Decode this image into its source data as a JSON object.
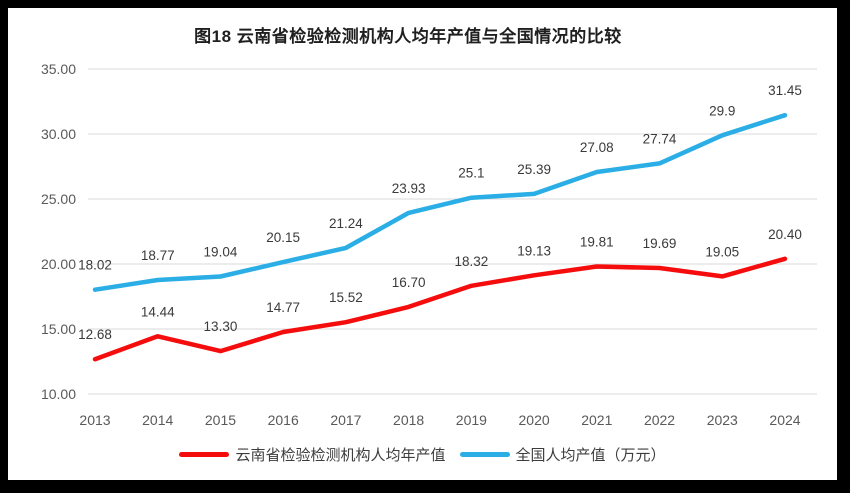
{
  "window": {
    "frame_color": "#000000",
    "panel_color": "#ffffff"
  },
  "chart_data": {
    "type": "line",
    "title": "图18  云南省检验检测机构人均年产值与全国情况的比较",
    "categories": [
      "2013",
      "2014",
      "2015",
      "2016",
      "2017",
      "2018",
      "2019",
      "2020",
      "2021",
      "2022",
      "2023",
      "2024"
    ],
    "series": [
      {
        "name": "云南省检验检测机构人均年产值",
        "color": "#f50d0d",
        "values": [
          12.68,
          14.44,
          13.3,
          14.77,
          15.52,
          16.7,
          18.32,
          19.13,
          19.81,
          19.69,
          19.05,
          20.4
        ],
        "labels": [
          "12.68",
          "14.44",
          "13.30",
          "14.77",
          "15.52",
          "16.70",
          "18.32",
          "19.13",
          "19.81",
          "19.69",
          "19.05",
          "20.40"
        ]
      },
      {
        "name": "全国人均产值（万元）",
        "color": "#2aaee5",
        "values": [
          18.02,
          18.77,
          19.04,
          20.15,
          21.24,
          23.93,
          25.1,
          25.39,
          27.08,
          27.74,
          29.9,
          31.45
        ],
        "labels": [
          "18.02",
          "18.77",
          "19.04",
          "20.15",
          "21.24",
          "23.93",
          "25.1",
          "25.39",
          "27.08",
          "27.74",
          "29.9",
          "31.45"
        ]
      }
    ],
    "xlabel": "",
    "ylabel": "",
    "ylim": [
      10,
      35
    ],
    "y_ticks": [
      "35.00",
      "30.00",
      "25.00",
      "20.00",
      "15.00",
      "10.00"
    ],
    "grid": true,
    "grid_color": "#d9d9d9",
    "tick_color": "#595959",
    "data_label_color": "#3a3a3a",
    "legend_position": "bottom"
  }
}
